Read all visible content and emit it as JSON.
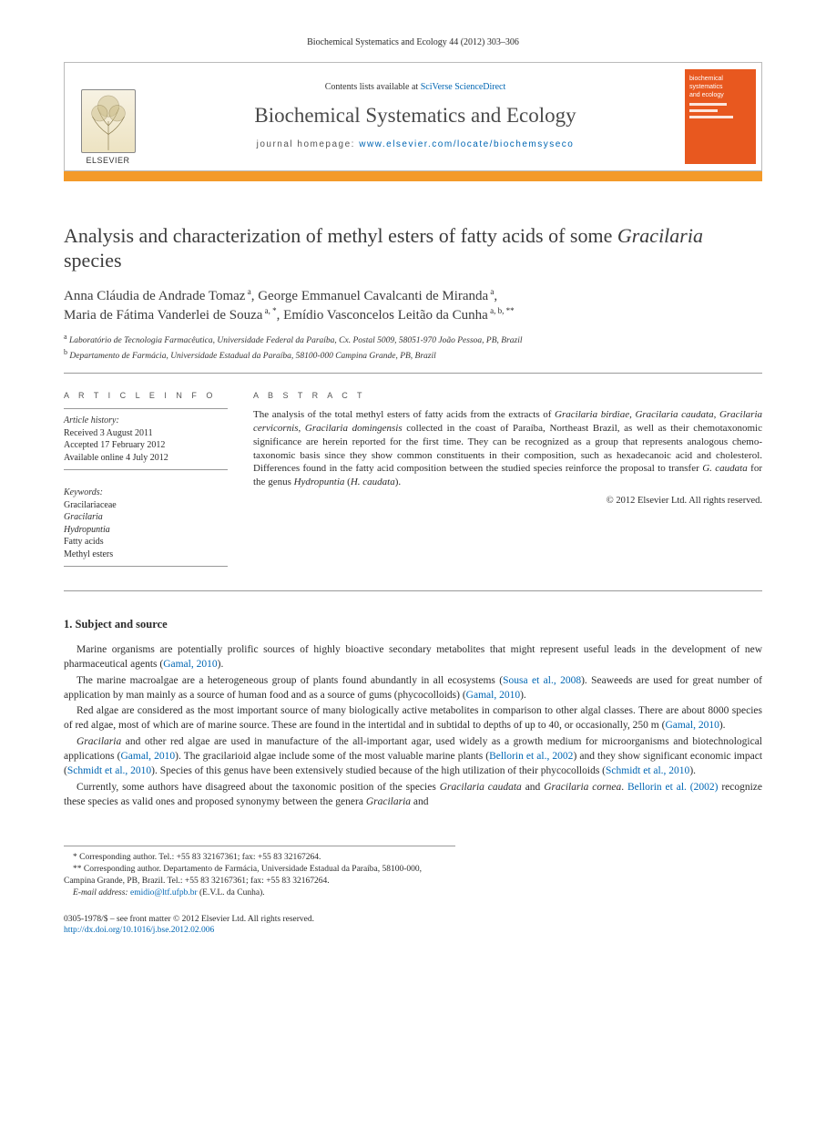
{
  "header_ref": "Biochemical Systematics and Ecology 44 (2012) 303–306",
  "masthead": {
    "elsevier_label": "ELSEVIER",
    "contents_prefix": "Contents lists available at ",
    "contents_link": "SciVerse ScienceDirect",
    "journal_name": "Biochemical Systematics and Ecology",
    "homepage_prefix": "journal homepage: ",
    "homepage_url": "www.elsevier.com/locate/biochemsyseco",
    "cover_line1": "biochemical",
    "cover_line2": "systematics",
    "cover_line3": "and ecology"
  },
  "colors": {
    "orange_bar": "#f49a29",
    "cover_bg": "#e8581f",
    "link": "#0066b3",
    "text": "#2b2b2b",
    "rule": "#999999"
  },
  "title_part1": "Analysis and characterization of methyl esters of fatty acids of some ",
  "title_italic": "Gracilaria",
  "title_part2": " species",
  "authors_html": "Anna Cláudia de Andrade Tomaz|a|, George Emmanuel Cavalcanti de Miranda|a|, Maria de Fátima Vanderlei de Souza|a,*|, Emídio Vasconcelos Leitão da Cunha|a,b,**|",
  "affiliations": {
    "a": "Laboratório de Tecnologia Farmacêutica, Universidade Federal da Paraíba, Cx. Postal 5009, 58051-970 João Pessoa, PB, Brazil",
    "b": "Departamento de Farmácia, Universidade Estadual da Paraíba, 58100-000 Campina Grande, PB, Brazil"
  },
  "article_info": {
    "heading": "A R T I C L E   I N F O",
    "history_label": "Article history:",
    "received": "Received 3 August 2011",
    "accepted": "Accepted 17 February 2012",
    "online": "Available online 4 July 2012",
    "keywords_label": "Keywords:",
    "keywords": [
      "Gracilariaceae",
      "Gracilaria",
      "Hydropuntia",
      "Fatty acids",
      "Methyl esters"
    ]
  },
  "abstract": {
    "heading": "A B S T R A C T",
    "text_parts": [
      {
        "t": "The analysis of the total methyl esters of fatty acids from the extracts of "
      },
      {
        "t": "Gracilaria birdiae",
        "i": true
      },
      {
        "t": ", "
      },
      {
        "t": "Gracilaria caudata",
        "i": true
      },
      {
        "t": ", "
      },
      {
        "t": "Gracilaria cervicornis",
        "i": true
      },
      {
        "t": ", "
      },
      {
        "t": "Gracilaria domingensis",
        "i": true
      },
      {
        "t": " collected in the coast of Paraíba, Northeast Brazil, as well as their chemotaxonomic significance are herein reported for the first time. They can be recognized as a group that represents analogous chemo-taxonomic basis since they show common constituents in their composition, such as hexadecanoic acid and cholesterol. Differences found in the fatty acid composition between the studied species reinforce the proposal to transfer "
      },
      {
        "t": "G. caudata",
        "i": true
      },
      {
        "t": " for the genus "
      },
      {
        "t": "Hydropuntia",
        "i": true
      },
      {
        "t": " ("
      },
      {
        "t": "H. caudata",
        "i": true
      },
      {
        "t": ")."
      }
    ],
    "copyright": "© 2012 Elsevier Ltd. All rights reserved."
  },
  "section1_heading": "1.  Subject and source",
  "paragraphs": [
    [
      {
        "t": "Marine organisms are potentially prolific sources of highly bioactive secondary metabolites that might represent useful leads in the development of new pharmaceutical agents ("
      },
      {
        "t": "Gamal, 2010",
        "link": true
      },
      {
        "t": ")."
      }
    ],
    [
      {
        "t": "The marine macroalgae are a heterogeneous group of plants found abundantly in all ecosystems ("
      },
      {
        "t": "Sousa et al., 2008",
        "link": true
      },
      {
        "t": "). Seaweeds are used for great number of application by man mainly as a source of human food and as a source of gums (phycocolloids) ("
      },
      {
        "t": "Gamal, 2010",
        "link": true
      },
      {
        "t": ")."
      }
    ],
    [
      {
        "t": "Red algae are considered as the most important source of many biologically active metabolites in comparison to other algal classes. There are about 8000 species of red algae, most of which are of marine source. These are found in the intertidal and in subtidal to depths of up to 40, or occasionally, 250 m ("
      },
      {
        "t": "Gamal, 2010",
        "link": true
      },
      {
        "t": ")."
      }
    ],
    [
      {
        "t": "Gracilaria",
        "i": true
      },
      {
        "t": " and other red algae are used in manufacture of the all-important agar, used widely as a growth medium for microorganisms and biotechnological applications ("
      },
      {
        "t": "Gamal, 2010",
        "link": true
      },
      {
        "t": "). The gracilarioid algae include some of the most valuable marine plants ("
      },
      {
        "t": "Bellorin et al., 2002",
        "link": true
      },
      {
        "t": ") and they show significant economic impact ("
      },
      {
        "t": "Schmidt et al., 2010",
        "link": true
      },
      {
        "t": "). Species of this genus have been extensively studied because of the high utilization of their phycocolloids ("
      },
      {
        "t": "Schmidt et al., 2010",
        "link": true
      },
      {
        "t": ")."
      }
    ],
    [
      {
        "t": "Currently, some authors have disagreed about the taxonomic position of the species "
      },
      {
        "t": "Gracilaria caudata",
        "i": true
      },
      {
        "t": " and "
      },
      {
        "t": "Gracilaria cornea",
        "i": true
      },
      {
        "t": ". "
      },
      {
        "t": "Bellorin et al. (2002)",
        "link": true
      },
      {
        "t": " recognize these species as valid ones and proposed synonymy between the genera "
      },
      {
        "t": "Gracilaria",
        "i": true
      },
      {
        "t": " and"
      }
    ]
  ],
  "footnotes": {
    "corr1": "* Corresponding author. Tel.: +55 83 32167361; fax: +55 83 32167264.",
    "corr2": "** Corresponding author. Departamento de Farmácia, Universidade Estadual da Paraíba, 58100-000, Campina Grande, PB, Brazil. Tel.: +55 83 32167361; fax: +55 83 32167264.",
    "email_label": "E-mail address:",
    "email": "emidio@ltf.ufpb.br",
    "email_suffix": " (E.V.L. da Cunha)."
  },
  "footer": {
    "line1": "0305-1978/$ – see front matter © 2012 Elsevier Ltd. All rights reserved.",
    "doi": "http://dx.doi.org/10.1016/j.bse.2012.02.006"
  }
}
